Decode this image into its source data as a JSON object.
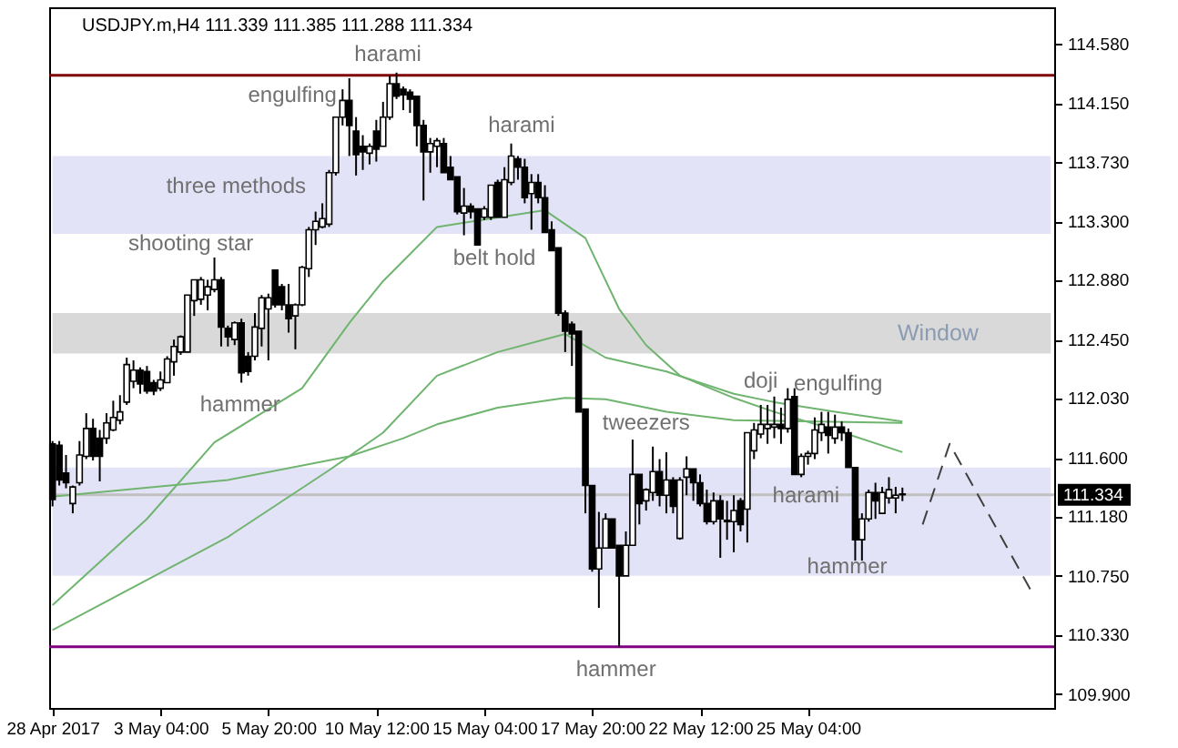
{
  "chart_data": {
    "type": "candlestick",
    "title": "USDJPY.m,H4  111.339 111.385 111.288 111.334",
    "color": "#000000",
    "categories": [
      "28 Apr 2017",
      null,
      null,
      null,
      null,
      null,
      null,
      null,
      null,
      null,
      null,
      null,
      null,
      null,
      null,
      null,
      "3 May 04:00",
      null,
      null,
      null,
      null,
      null,
      null,
      null,
      null,
      null,
      null,
      null,
      null,
      null,
      null,
      null,
      "5 May 20:00",
      null,
      null,
      null,
      null,
      null,
      null,
      null,
      null,
      null,
      null,
      null,
      null,
      null,
      null,
      null,
      "10 May 12:00",
      null,
      null,
      null,
      null,
      null,
      null,
      null,
      null,
      null,
      null,
      null,
      null,
      null,
      null,
      null,
      "15 May 04:00",
      null,
      null,
      null,
      null,
      null,
      null,
      null,
      null,
      null,
      null,
      null,
      null,
      null,
      null,
      null,
      "17 May 20:00",
      null,
      null,
      null,
      null,
      null,
      null,
      null,
      null,
      null,
      null,
      null,
      null,
      null,
      null,
      null,
      "22 May 12:00",
      null,
      null,
      null,
      null,
      null,
      null,
      null,
      null,
      null,
      null,
      null,
      null,
      null,
      null,
      null,
      "25 May 04:00",
      null,
      null,
      null,
      null,
      null,
      null,
      null,
      null,
      null,
      null,
      null,
      null,
      null,
      null,
      null,
      null,
      null,
      null,
      null,
      null,
      null,
      null,
      null,
      null,
      null,
      null,
      null,
      null,
      null,
      null,
      null,
      null,
      null,
      null,
      null,
      null
    ],
    "ohlc": [
      [
        111.7,
        111.72,
        111.25,
        111.3
      ],
      [
        111.69,
        111.72,
        111.4,
        111.44
      ],
      [
        111.49,
        111.62,
        111.38,
        111.42
      ],
      [
        111.27,
        111.4,
        111.2,
        111.39
      ],
      [
        111.42,
        111.72,
        111.4,
        111.62
      ],
      [
        111.61,
        111.92,
        111.59,
        111.81
      ],
      [
        111.81,
        111.88,
        111.58,
        111.61
      ],
      [
        111.74,
        111.8,
        111.43,
        111.61
      ],
      [
        111.74,
        111.92,
        111.7,
        111.85
      ],
      [
        111.8,
        112.01,
        111.79,
        111.89
      ],
      [
        111.87,
        112.05,
        111.84,
        111.93
      ],
      [
        112.0,
        112.32,
        111.98,
        112.27
      ],
      [
        112.15,
        112.3,
        112.1,
        112.23
      ],
      [
        112.23,
        112.25,
        112.06,
        112.13
      ],
      [
        112.22,
        112.26,
        112.06,
        112.08
      ],
      [
        112.14,
        112.16,
        112.05,
        112.08
      ],
      [
        112.1,
        112.22,
        112.08,
        112.16
      ],
      [
        112.14,
        112.33,
        112.14,
        112.31
      ],
      [
        112.29,
        112.45,
        112.19,
        112.4
      ],
      [
        112.36,
        112.48,
        112.34,
        112.47
      ],
      [
        112.36,
        112.77,
        112.36,
        112.77
      ],
      [
        112.73,
        112.88,
        112.62,
        112.88
      ],
      [
        112.74,
        112.9,
        112.7,
        112.88
      ],
      [
        112.77,
        112.88,
        112.66,
        112.83
      ],
      [
        112.81,
        113.04,
        112.79,
        112.88
      ],
      [
        112.88,
        112.9,
        112.4,
        112.54
      ],
      [
        112.53,
        112.55,
        112.4,
        112.47
      ],
      [
        112.45,
        112.58,
        112.41,
        112.57
      ],
      [
        112.57,
        112.6,
        112.14,
        112.21
      ],
      [
        112.33,
        112.36,
        112.19,
        112.22
      ],
      [
        112.33,
        112.64,
        112.3,
        112.54
      ],
      [
        112.53,
        112.77,
        112.4,
        112.75
      ],
      [
        112.67,
        112.78,
        112.3,
        112.75
      ],
      [
        112.95,
        112.95,
        112.68,
        112.7
      ],
      [
        112.83,
        112.85,
        112.66,
        112.7
      ],
      [
        112.7,
        112.85,
        112.5,
        112.6
      ],
      [
        112.62,
        112.71,
        112.38,
        112.7
      ],
      [
        112.7,
        112.98,
        112.69,
        112.97
      ],
      [
        112.96,
        113.26,
        112.9,
        113.24
      ],
      [
        113.24,
        113.37,
        113.13,
        113.3
      ],
      [
        113.26,
        113.43,
        113.25,
        113.32
      ],
      [
        113.28,
        113.67,
        113.26,
        113.65
      ],
      [
        113.65,
        114.05,
        113.63,
        114.05
      ],
      [
        114.05,
        114.25,
        113.99,
        114.17
      ],
      [
        114.17,
        114.33,
        113.77,
        113.99
      ],
      [
        113.95,
        114.05,
        113.63,
        113.78
      ],
      [
        113.84,
        113.92,
        113.67,
        113.8
      ],
      [
        113.79,
        113.86,
        113.71,
        113.84
      ],
      [
        113.95,
        114.03,
        113.73,
        113.82
      ],
      [
        113.84,
        114.16,
        113.84,
        114.05
      ],
      [
        114.05,
        114.35,
        114.03,
        114.29
      ],
      [
        114.29,
        114.37,
        114.18,
        114.2
      ],
      [
        114.25,
        114.27,
        114.1,
        114.21
      ],
      [
        114.23,
        114.25,
        114.08,
        114.18
      ],
      [
        114.2,
        114.2,
        113.84,
        113.99
      ],
      [
        113.99,
        114.03,
        113.45,
        113.8
      ],
      [
        113.8,
        113.9,
        113.65,
        113.86
      ],
      [
        113.84,
        113.9,
        113.69,
        113.88
      ],
      [
        113.86,
        113.9,
        113.65,
        113.65
      ],
      [
        113.69,
        113.77,
        113.6,
        113.6
      ],
      [
        113.62,
        113.62,
        113.35,
        113.37
      ],
      [
        113.36,
        113.54,
        113.2,
        113.41
      ],
      [
        113.41,
        113.43,
        113.32,
        113.37
      ],
      [
        113.39,
        113.39,
        113.13,
        113.13
      ],
      [
        113.33,
        113.41,
        113.31,
        113.39
      ],
      [
        113.33,
        113.56,
        113.31,
        113.56
      ],
      [
        113.58,
        113.6,
        113.33,
        113.33
      ],
      [
        113.33,
        113.69,
        113.33,
        113.6
      ],
      [
        113.58,
        113.86,
        113.56,
        113.77
      ],
      [
        113.75,
        113.77,
        113.6,
        113.69
      ],
      [
        113.69,
        113.75,
        113.43,
        113.47
      ],
      [
        113.5,
        113.64,
        113.24,
        113.58
      ],
      [
        113.58,
        113.64,
        113.43,
        113.47
      ],
      [
        113.47,
        113.56,
        113.22,
        113.22
      ],
      [
        113.24,
        113.3,
        113.09,
        113.09
      ],
      [
        113.11,
        113.11,
        112.62,
        112.64
      ],
      [
        112.64,
        112.66,
        112.36,
        112.51
      ],
      [
        112.56,
        112.58,
        112.26,
        112.49
      ],
      [
        112.51,
        112.51,
        111.93,
        111.93
      ],
      [
        111.95,
        111.95,
        111.2,
        111.4
      ],
      [
        111.4,
        111.4,
        110.78,
        110.8
      ],
      [
        110.8,
        111.21,
        110.52,
        110.95
      ],
      [
        110.95,
        111.2,
        110.95,
        111.16
      ],
      [
        111.16,
        111.16,
        110.95,
        110.95
      ],
      [
        110.97,
        110.97,
        110.24,
        110.75
      ],
      [
        110.75,
        111.07,
        110.75,
        110.97
      ],
      [
        110.97,
        111.73,
        110.97,
        111.48
      ],
      [
        111.48,
        111.48,
        111.12,
        111.27
      ],
      [
        111.29,
        111.38,
        111.22,
        111.37
      ],
      [
        111.35,
        111.68,
        111.29,
        111.5
      ],
      [
        111.5,
        111.59,
        111.25,
        111.33
      ],
      [
        111.33,
        111.64,
        111.2,
        111.44
      ],
      [
        111.44,
        111.46,
        111.2,
        111.25
      ],
      [
        111.02,
        111.46,
        111.01,
        111.44
      ],
      [
        111.46,
        111.61,
        111.33,
        111.52
      ],
      [
        111.52,
        111.52,
        111.29,
        111.42
      ],
      [
        111.42,
        111.48,
        111.25,
        111.27
      ],
      [
        111.27,
        111.37,
        111.12,
        111.14
      ],
      [
        111.14,
        111.35,
        111.12,
        111.29
      ],
      [
        111.29,
        111.33,
        110.88,
        111.16
      ],
      [
        111.15,
        111.29,
        111.01,
        111.14
      ],
      [
        111.14,
        111.33,
        110.92,
        111.22
      ],
      [
        111.29,
        111.31,
        111.07,
        111.12
      ],
      [
        111.23,
        111.78,
        110.99,
        111.78
      ],
      [
        111.65,
        111.85,
        111.59,
        111.8
      ],
      [
        111.77,
        111.98,
        111.74,
        111.84
      ],
      [
        111.81,
        111.98,
        111.7,
        111.84
      ],
      [
        111.82,
        112.04,
        111.74,
        111.84
      ],
      [
        111.84,
        111.96,
        111.7,
        111.81
      ],
      [
        111.81,
        112.1,
        111.78,
        112.02
      ],
      [
        112.04,
        112.1,
        111.48,
        111.48
      ],
      [
        111.48,
        111.63,
        111.46,
        111.61
      ],
      [
        111.61,
        111.65,
        111.55,
        111.63
      ],
      [
        111.63,
        111.89,
        111.59,
        111.8
      ],
      [
        111.78,
        111.93,
        111.72,
        111.84
      ],
      [
        111.82,
        111.93,
        111.63,
        111.76
      ],
      [
        111.74,
        111.91,
        111.7,
        111.82
      ],
      [
        111.82,
        111.86,
        111.72,
        111.78
      ],
      [
        111.78,
        111.81,
        111.53,
        111.53
      ],
      [
        111.53,
        111.53,
        110.86,
        111.01
      ],
      [
        111.01,
        111.2,
        110.86,
        111.16
      ],
      [
        111.16,
        111.37,
        111.14,
        111.35
      ],
      [
        111.35,
        111.42,
        111.16,
        111.29
      ],
      [
        111.2,
        111.39,
        111.2,
        111.35
      ],
      [
        111.31,
        111.46,
        111.27,
        111.37
      ],
      [
        111.31,
        111.39,
        111.2,
        111.33
      ],
      [
        111.339,
        111.385,
        111.288,
        111.334
      ],
      null,
      null,
      null,
      null,
      null,
      null,
      null,
      null,
      null,
      null,
      null,
      null,
      null,
      null,
      null,
      null,
      null,
      null,
      null,
      null,
      null,
      null
    ],
    "series": [
      {
        "type": "line",
        "color": "#6fb46f",
        "values": [
          110.54,
          null,
          null,
          null,
          null,
          null,
          null,
          null,
          null,
          null,
          null,
          null,
          null,
          null,
          111.16,
          null,
          null,
          null,
          null,
          null,
          null,
          null,
          null,
          null,
          111.71,
          null,
          null,
          null,
          null,
          null,
          null,
          null,
          null,
          null,
          null,
          null,
          null,
          112.1,
          null,
          null,
          null,
          null,
          null,
          null,
          112.57,
          null,
          null,
          null,
          null,
          112.87,
          null,
          null,
          null,
          null,
          null,
          null,
          null,
          113.26,
          null,
          null,
          null,
          null,
          null,
          null,
          null,
          null,
          null,
          null,
          null,
          null,
          null,
          null,
          null,
          113.38,
          null,
          null,
          113.28,
          null,
          null,
          113.18,
          null,
          null,
          null,
          null,
          112.67,
          null,
          null,
          null,
          112.41,
          null,
          null,
          null,
          null,
          112.19,
          null,
          null,
          null,
          null,
          null,
          null,
          null,
          112.03,
          null,
          null,
          null,
          null,
          null,
          111.93,
          null,
          null,
          null,
          null,
          null,
          null,
          null,
          null,
          111.8,
          null,
          null,
          null,
          null,
          null,
          null,
          null,
          null,
          null,
          111.64,
          null,
          null,
          null,
          null,
          null,
          null,
          null,
          null,
          null,
          null,
          null,
          null,
          null,
          null,
          null,
          null,
          null,
          null,
          null,
          null,
          null,
          null
        ]
      },
      {
        "type": "line",
        "color": "#6fb46f",
        "values": [
          110.36,
          null,
          null,
          null,
          null,
          null,
          null,
          null,
          null,
          null,
          null,
          null,
          null,
          null,
          null,
          null,
          null,
          null,
          null,
          null,
          null,
          null,
          null,
          null,
          null,
          null,
          111.03,
          null,
          null,
          null,
          null,
          null,
          null,
          null,
          null,
          null,
          null,
          null,
          null,
          null,
          null,
          111.51,
          null,
          null,
          null,
          null,
          null,
          null,
          null,
          111.78,
          null,
          null,
          null,
          null,
          null,
          null,
          null,
          112.19,
          null,
          null,
          null,
          null,
          null,
          null,
          null,
          null,
          112.36,
          null,
          null,
          null,
          null,
          null,
          null,
          null,
          null,
          null,
          112.49,
          null,
          null,
          null,
          null,
          null,
          112.32,
          null,
          null,
          null,
          null,
          null,
          null,
          null,
          null,
          112.22,
          null,
          null,
          null,
          null,
          null,
          null,
          null,
          null,
          null,
          112.06,
          null,
          null,
          null,
          null,
          null,
          112.0,
          null,
          null,
          null,
          null,
          null,
          null,
          null,
          null,
          111.93,
          null,
          null,
          null,
          null,
          null,
          null,
          null,
          null,
          null,
          111.86,
          null,
          null,
          null,
          null,
          null,
          null,
          null,
          null,
          null,
          null,
          null,
          null,
          null,
          null,
          null,
          null,
          null,
          null,
          null,
          null,
          null,
          null
        ]
      },
      {
        "type": "line",
        "color": "#6fb46f",
        "values": [
          111.32,
          null,
          null,
          null,
          null,
          null,
          null,
          null,
          null,
          null,
          null,
          null,
          null,
          null,
          null,
          null,
          null,
          null,
          null,
          null,
          null,
          null,
          null,
          null,
          null,
          null,
          111.44,
          null,
          null,
          null,
          null,
          null,
          null,
          null,
          null,
          null,
          null,
          null,
          null,
          null,
          null,
          null,
          null,
          null,
          111.61,
          null,
          null,
          null,
          null,
          null,
          null,
          null,
          111.74,
          null,
          null,
          null,
          null,
          111.84,
          null,
          null,
          null,
          null,
          null,
          null,
          null,
          null,
          111.96,
          null,
          null,
          null,
          null,
          null,
          null,
          null,
          null,
          null,
          112.03,
          null,
          null,
          null,
          null,
          null,
          112.02,
          null,
          null,
          null,
          null,
          null,
          null,
          null,
          null,
          111.93,
          null,
          null,
          null,
          null,
          null,
          null,
          null,
          null,
          null,
          111.87,
          null,
          null,
          null,
          null,
          null,
          null,
          null,
          null,
          null,
          null,
          null,
          null,
          null,
          null,
          null,
          null,
          null,
          null,
          null,
          null,
          null,
          null,
          null,
          null,
          111.85,
          null,
          null,
          null,
          null,
          null,
          null,
          null,
          null,
          null,
          null,
          null,
          null,
          null,
          null,
          null,
          null,
          null,
          null,
          null,
          null,
          null,
          null
        ]
      },
      {
        "type": "line",
        "color": "#404040",
        "line_style": "dashed",
        "values": [
          null,
          null,
          null,
          null,
          null,
          null,
          null,
          null,
          null,
          null,
          null,
          null,
          null,
          null,
          null,
          null,
          null,
          null,
          null,
          null,
          null,
          null,
          null,
          null,
          null,
          null,
          null,
          null,
          null,
          null,
          null,
          null,
          null,
          null,
          null,
          null,
          null,
          null,
          null,
          null,
          null,
          null,
          null,
          null,
          null,
          null,
          null,
          null,
          null,
          null,
          null,
          null,
          null,
          null,
          null,
          null,
          null,
          null,
          null,
          null,
          null,
          null,
          null,
          null,
          null,
          null,
          null,
          null,
          null,
          null,
          null,
          null,
          null,
          null,
          null,
          null,
          null,
          null,
          null,
          null,
          null,
          null,
          null,
          null,
          null,
          null,
          null,
          null,
          null,
          null,
          null,
          null,
          null,
          null,
          null,
          null,
          null,
          null,
          null,
          null,
          null,
          null,
          null,
          null,
          null,
          null,
          null,
          null,
          null,
          null,
          null,
          null,
          null,
          null,
          null,
          null,
          null,
          null,
          null,
          null,
          null,
          null,
          null,
          null,
          null,
          null,
          null,
          null,
          null,
          111.12,
          null,
          null,
          null,
          111.7,
          null,
          null,
          null,
          null,
          null,
          null,
          null,
          null,
          null,
          null,
          null,
          110.65,
          null,
          null,
          null
        ]
      }
    ],
    "ylim": [
      109.8,
      114.84
    ],
    "yticks": [
      {
        "value": 109.9,
        "label": "109.900"
      },
      {
        "value": 110.33,
        "label": "110.330"
      },
      {
        "value": 110.75,
        "label": "110.750"
      },
      {
        "value": 111.18,
        "label": "111.180"
      },
      {
        "value": 111.6,
        "label": "111.600"
      },
      {
        "value": 112.03,
        "label": "112.030"
      },
      {
        "value": 112.45,
        "label": "112.450"
      },
      {
        "value": 112.88,
        "label": "112.880"
      },
      {
        "value": 113.3,
        "label": "113.300"
      },
      {
        "value": 113.73,
        "label": "113.730"
      },
      {
        "value": 114.15,
        "label": "114.150"
      },
      {
        "value": 114.58,
        "label": "114.580"
      }
    ],
    "bands": [
      {
        "axis": "y",
        "from": 113.21,
        "to": 113.77,
        "color": "#e3e3f7"
      },
      {
        "axis": "y",
        "from": 112.35,
        "to": 112.64,
        "color": "#d9d9d9",
        "label": "Window"
      },
      {
        "axis": "y",
        "from": 110.75,
        "to": 111.53,
        "color": "#e3e3f7"
      }
    ],
    "ref_lines": [
      {
        "axis": "y",
        "value": 114.35,
        "color": "#800000"
      },
      {
        "axis": "y",
        "value": 110.24,
        "color": "#800080"
      },
      {
        "axis": "y",
        "value": 111.334,
        "color": "#c0c0c0",
        "label": "111.334"
      }
    ],
    "annotations": [
      "harami",
      "engulfing",
      "three methods",
      "shooting star",
      "hammer",
      "harami",
      "belt hold",
      "tweezers",
      "hammer",
      "doji",
      "engulfing",
      "harami",
      "hammer"
    ]
  }
}
